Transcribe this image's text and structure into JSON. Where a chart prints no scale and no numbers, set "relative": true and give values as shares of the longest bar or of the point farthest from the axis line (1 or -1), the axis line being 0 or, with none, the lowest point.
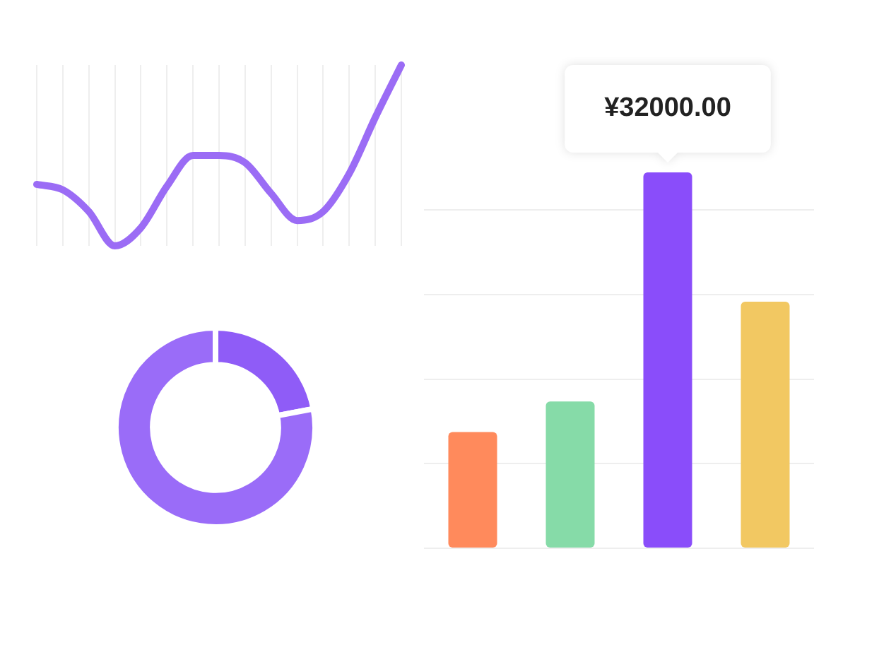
{
  "chart_data": [
    {
      "type": "line",
      "relative": true,
      "categories": [
        null,
        null,
        null,
        null,
        null,
        null,
        null,
        null,
        null,
        null,
        null,
        null,
        null,
        null,
        null
      ],
      "color": "#9b6cf5",
      "values": [
        0.34,
        0.31,
        0.19,
        0,
        0.1,
        0.33,
        0.5,
        0.5,
        0.46,
        0.29,
        0.14,
        0.19,
        0.4,
        0.71,
        1
      ],
      "grid": "x",
      "marker": "none",
      "line_style": "solid"
    },
    {
      "type": "donut",
      "categories": [
        null,
        null
      ],
      "values": [
        22,
        78
      ],
      "colors": [
        "#8f5cf7",
        "#9a6cf8"
      ]
    },
    {
      "type": "bar",
      "categories": [
        null,
        null,
        null,
        null
      ],
      "values": [
        9900,
        12500,
        32000,
        21000
      ],
      "colors": [
        "#ff8a5c",
        "#86dba8",
        "#8a4dfa",
        "#f2c862"
      ],
      "value_labels": [
        null,
        null,
        "¥32000.00",
        null
      ],
      "ylim": [
        0,
        32000
      ],
      "yticks": [
        {
          "value": 0,
          "label": null
        },
        {
          "value": 7200,
          "label": null
        },
        {
          "value": 14400,
          "label": null
        },
        {
          "value": 21600,
          "label": null
        },
        {
          "value": 28800,
          "label": null
        }
      ],
      "tick_labels": false,
      "grid": "y"
    }
  ]
}
